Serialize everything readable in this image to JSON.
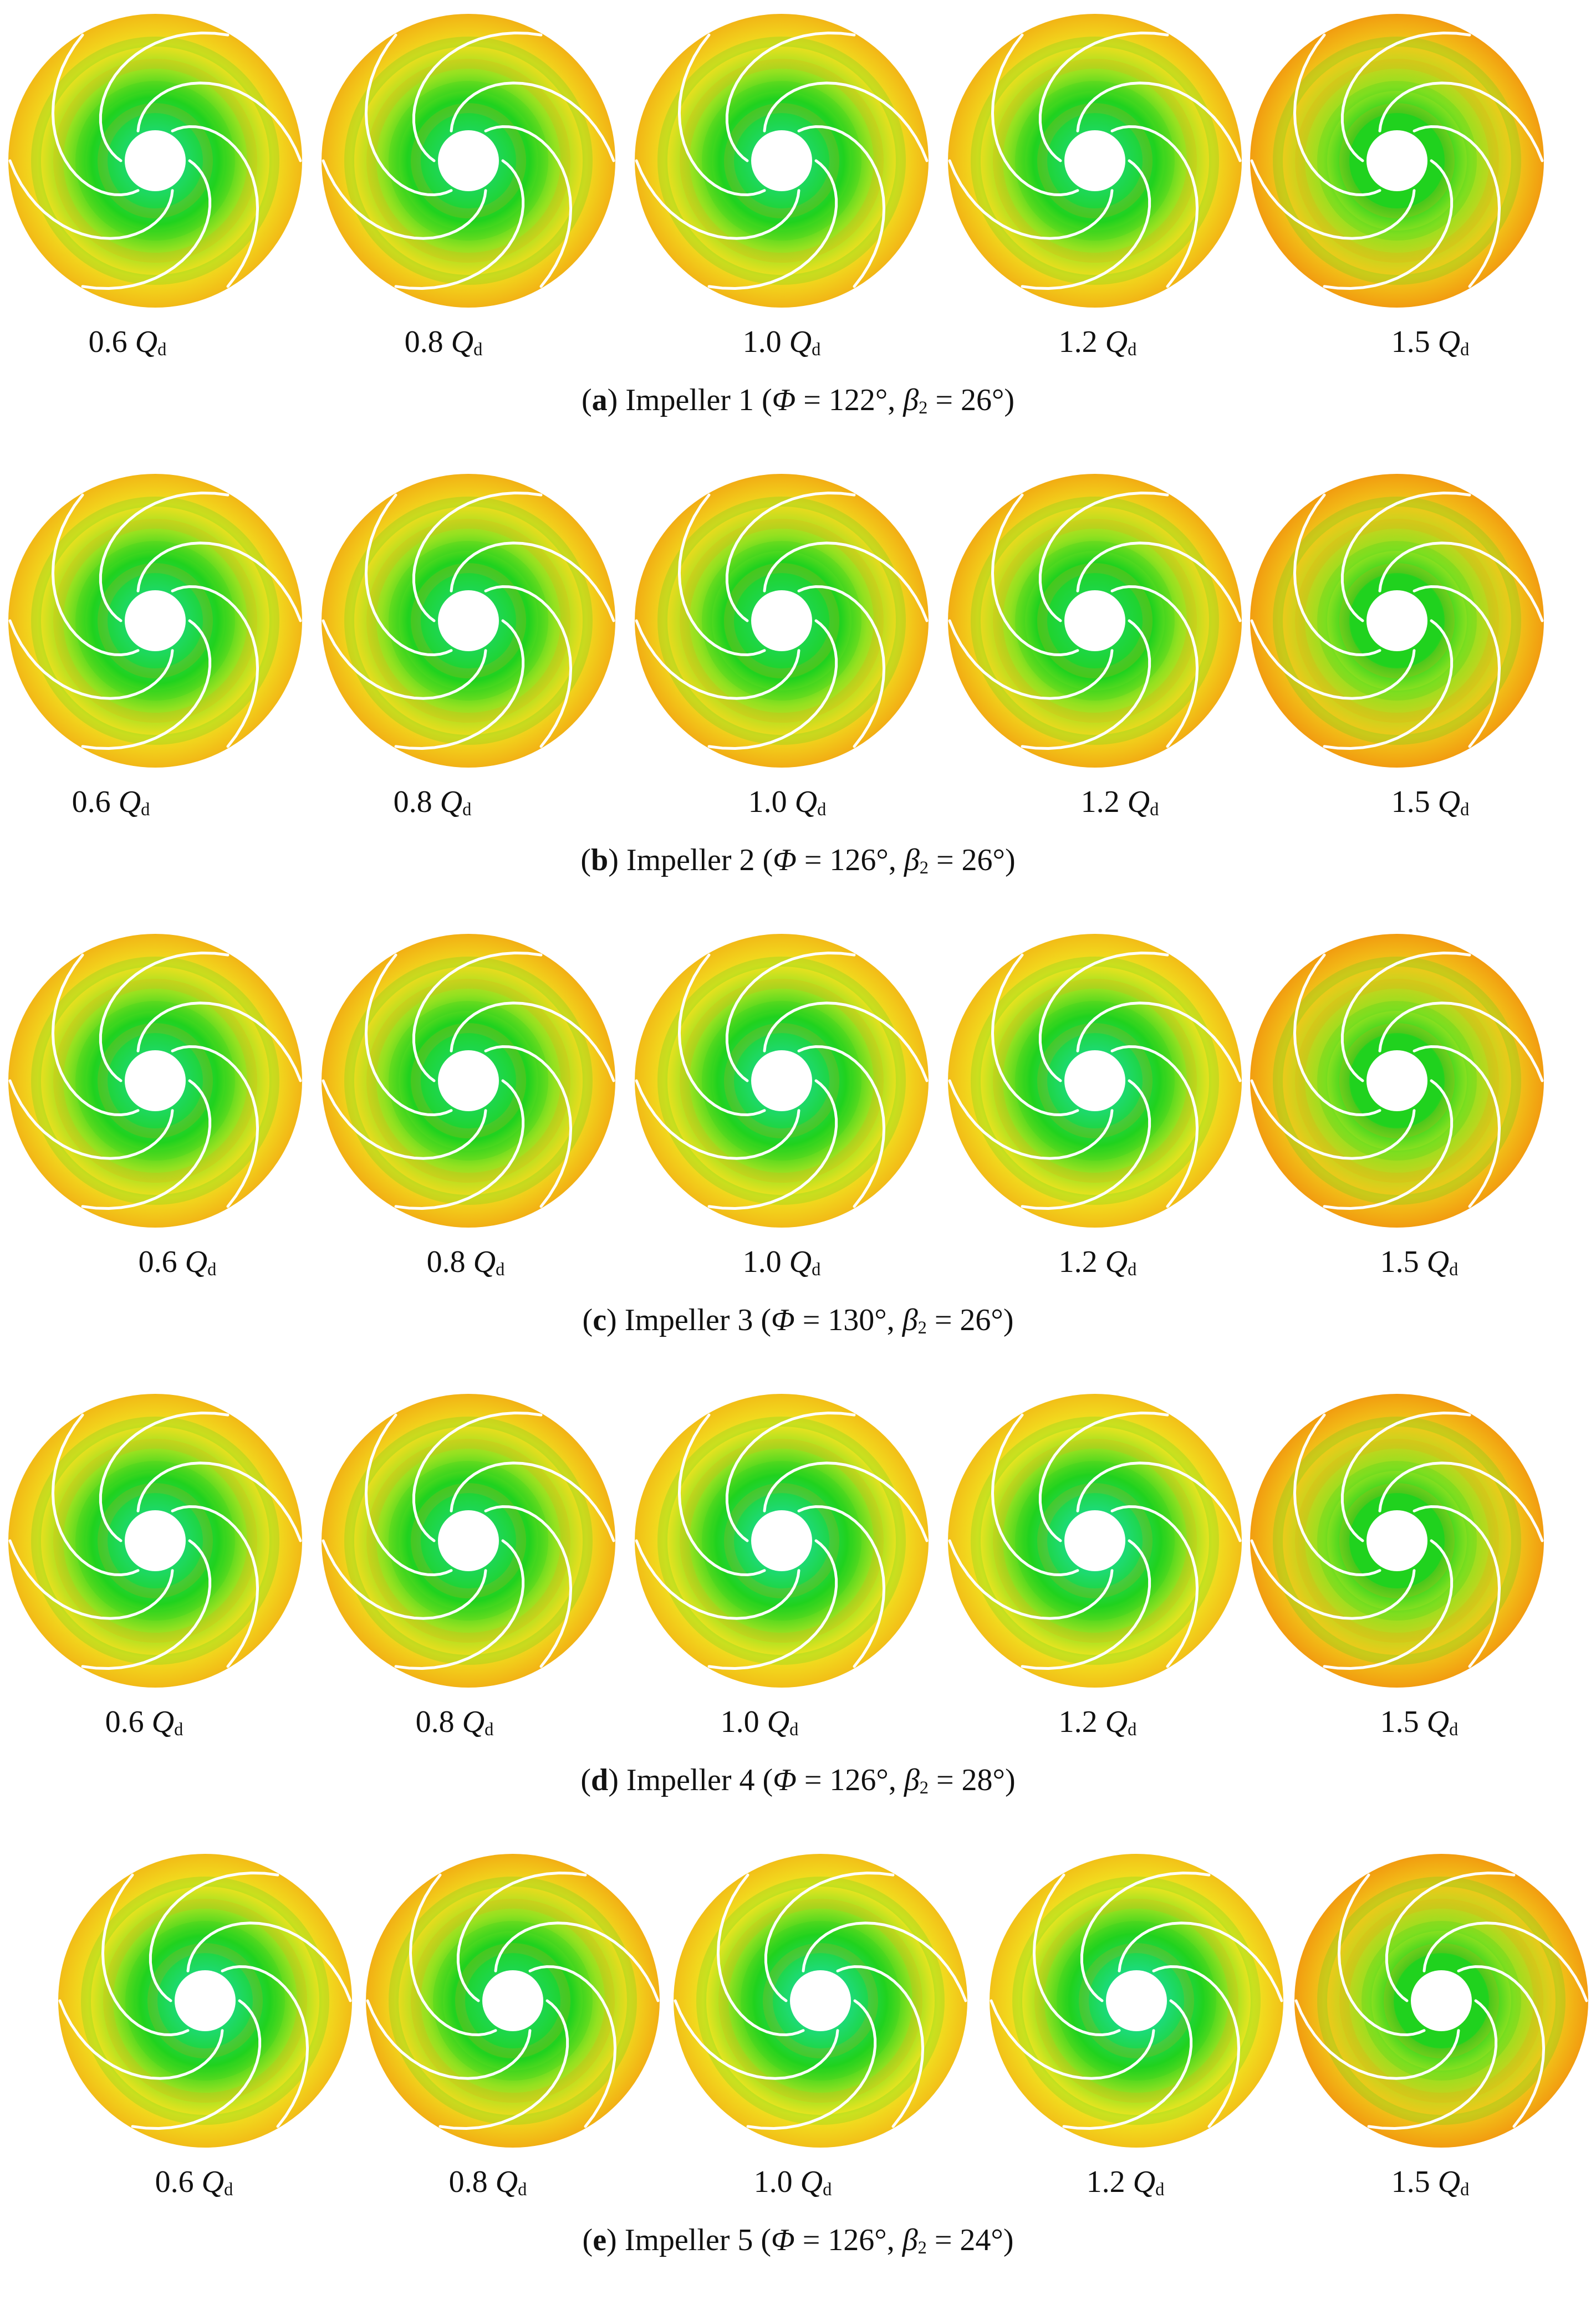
{
  "colors": {
    "core": "#18e6f2",
    "mid": "#20d21e",
    "outer_low": "#f1ee22",
    "outer_high": "#f29c10",
    "blade": "#ffffff",
    "hub": "#ffffff"
  },
  "flow_unit": {
    "symbol": "Q",
    "subscript": "d"
  },
  "angle_symbols": {
    "wrap": "Φ",
    "outlet": "β",
    "outlet_sub": "2"
  },
  "panels": [
    {
      "letter": "a",
      "name": "Impeller 1",
      "phi": "122°",
      "beta": "26°",
      "images": [
        {
          "q": "0.6",
          "level": 0.3
        },
        {
          "q": "0.8",
          "level": 0.38
        },
        {
          "q": "1.0",
          "level": 0.34
        },
        {
          "q": "1.2",
          "level": 0.36
        },
        {
          "q": "1.5",
          "level": 0.8
        }
      ]
    },
    {
      "letter": "b",
      "name": "Impeller 2",
      "phi": "126°",
      "beta": "26°",
      "images": [
        {
          "q": "0.6",
          "level": 0.32
        },
        {
          "q": "0.8",
          "level": 0.4
        },
        {
          "q": "1.0",
          "level": 0.44
        },
        {
          "q": "1.2",
          "level": 0.46
        },
        {
          "q": "1.5",
          "level": 0.85
        }
      ]
    },
    {
      "letter": "c",
      "name": "Impeller 3",
      "phi": "130°",
      "beta": "26°",
      "images": [
        {
          "q": "0.6",
          "level": 0.34
        },
        {
          "q": "0.8",
          "level": 0.42
        },
        {
          "q": "1.0",
          "level": 0.28
        },
        {
          "q": "1.2",
          "level": 0.26
        },
        {
          "q": "1.5",
          "level": 0.85
        }
      ]
    },
    {
      "letter": "d",
      "name": "Impeller 4",
      "phi": "126°",
      "beta": "28°",
      "images": [
        {
          "q": "0.6",
          "level": 0.3
        },
        {
          "q": "0.8",
          "level": 0.38
        },
        {
          "q": "1.0",
          "level": 0.24
        },
        {
          "q": "1.2",
          "level": 0.22
        },
        {
          "q": "1.5",
          "level": 0.82
        }
      ]
    },
    {
      "letter": "e",
      "name": "Impeller 5",
      "phi": "126°",
      "beta": "24°",
      "images": [
        {
          "q": "0.6",
          "level": 0.26
        },
        {
          "q": "0.8",
          "level": 0.42
        },
        {
          "q": "1.0",
          "level": 0.22
        },
        {
          "q": "1.2",
          "level": 0.2
        },
        {
          "q": "1.5",
          "level": 0.84
        }
      ]
    }
  ]
}
